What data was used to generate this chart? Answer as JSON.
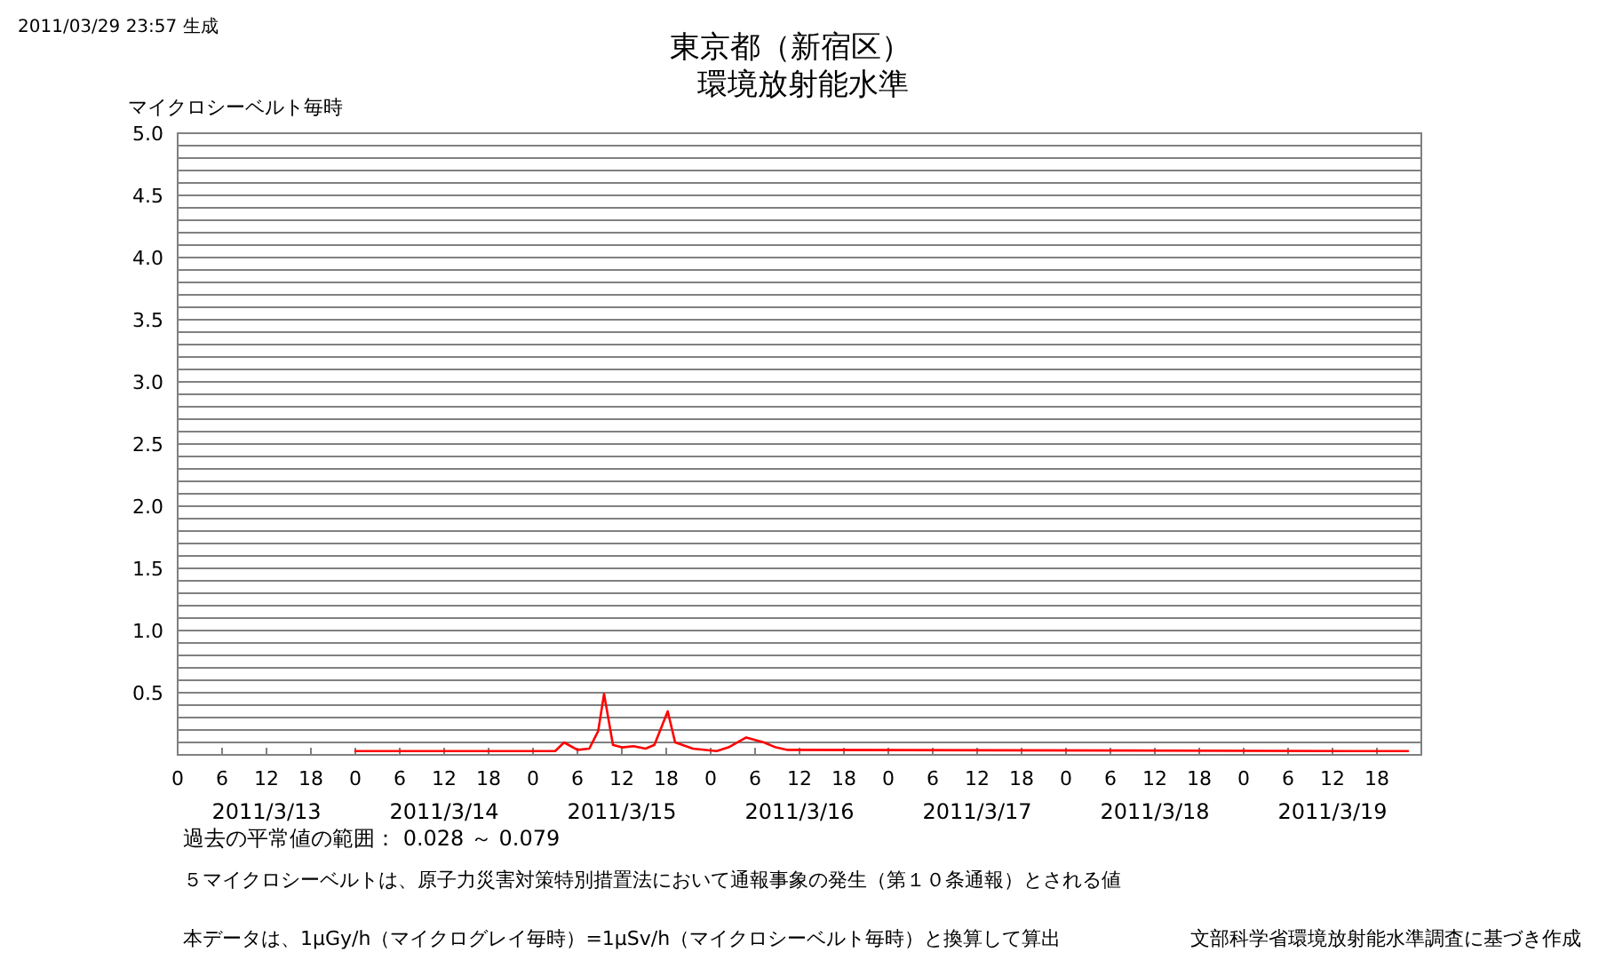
{
  "chart_data": {
    "type": "line",
    "title": "東京都（新宿区）",
    "subtitle": "環境放射能水準",
    "ylabel": "マイクロシーベルト毎時",
    "x": [
      "2011-03-14T00:00",
      "2011-03-15T03:00",
      "2011-03-15T04:12",
      "2011-03-15T06:00",
      "2011-03-15T07:36",
      "2011-03-15T08:48",
      "2011-03-15T09:36",
      "2011-03-15T10:48",
      "2011-03-15T12:00",
      "2011-03-15T13:36",
      "2011-03-15T15:12",
      "2011-03-15T16:24",
      "2011-03-15T18:12",
      "2011-03-15T19:12",
      "2011-03-15T21:36",
      "2011-03-16T00:48",
      "2011-03-16T02:24",
      "2011-03-16T04:48",
      "2011-03-16T07:12",
      "2011-03-16T08:48",
      "2011-03-16T10:24",
      "2011-03-19T22:12"
    ],
    "series": [
      {
        "color": "#ff0000",
        "values": [
          0.03,
          0.03,
          0.1,
          0.04,
          0.05,
          0.19,
          0.49,
          0.08,
          0.06,
          0.07,
          0.05,
          0.08,
          0.35,
          0.1,
          0.05,
          0.03,
          0.06,
          0.14,
          0.1,
          0.06,
          0.04,
          0.03
        ]
      }
    ],
    "xlim": [
      "2011-03-13T00:00",
      "2011-03-20T00:00"
    ],
    "ylim": [
      0,
      5
    ],
    "xticks": [
      {
        "value": "2011-03-13T00:00",
        "label": "0"
      },
      {
        "value": "2011-03-13T06:00",
        "label": "6"
      },
      {
        "value": "2011-03-13T12:00",
        "label": "12"
      },
      {
        "value": "2011-03-13T18:00",
        "label": "18"
      },
      {
        "value": "2011-03-14T00:00",
        "label": "0"
      },
      {
        "value": "2011-03-14T06:00",
        "label": "6"
      },
      {
        "value": "2011-03-14T12:00",
        "label": "12"
      },
      {
        "value": "2011-03-14T18:00",
        "label": "18"
      },
      {
        "value": "2011-03-15T00:00",
        "label": "0"
      },
      {
        "value": "2011-03-15T06:00",
        "label": "6"
      },
      {
        "value": "2011-03-15T12:00",
        "label": "12"
      },
      {
        "value": "2011-03-15T18:00",
        "label": "18"
      },
      {
        "value": "2011-03-16T00:00",
        "label": "0"
      },
      {
        "value": "2011-03-16T06:00",
        "label": "6"
      },
      {
        "value": "2011-03-16T12:00",
        "label": "12"
      },
      {
        "value": "2011-03-16T18:00",
        "label": "18"
      },
      {
        "value": "2011-03-17T00:00",
        "label": "0"
      },
      {
        "value": "2011-03-17T06:00",
        "label": "6"
      },
      {
        "value": "2011-03-17T12:00",
        "label": "12"
      },
      {
        "value": "2011-03-17T18:00",
        "label": "18"
      },
      {
        "value": "2011-03-18T00:00",
        "label": "0"
      },
      {
        "value": "2011-03-18T06:00",
        "label": "6"
      },
      {
        "value": "2011-03-18T12:00",
        "label": "12"
      },
      {
        "value": "2011-03-18T18:00",
        "label": "18"
      },
      {
        "value": "2011-03-19T00:00",
        "label": "0"
      },
      {
        "value": "2011-03-19T06:00",
        "label": "6"
      },
      {
        "value": "2011-03-19T12:00",
        "label": "12"
      },
      {
        "value": "2011-03-19T18:00",
        "label": "18"
      }
    ],
    "yticks": [
      {
        "value": 0.1,
        "label": null
      },
      {
        "value": 0.2,
        "label": null
      },
      {
        "value": 0.3,
        "label": null
      },
      {
        "value": 0.4,
        "label": null
      },
      0.5,
      {
        "value": 0.6,
        "label": null
      },
      {
        "value": 0.7,
        "label": null
      },
      {
        "value": 0.8,
        "label": null
      },
      {
        "value": 0.9,
        "label": null
      },
      {
        "value": 1,
        "label": "1.0"
      },
      {
        "value": 1.1,
        "label": null
      },
      {
        "value": 1.2,
        "label": null
      },
      {
        "value": 1.3,
        "label": null
      },
      {
        "value": 1.4,
        "label": null
      },
      1.5,
      {
        "value": 1.6,
        "label": null
      },
      {
        "value": 1.7,
        "label": null
      },
      {
        "value": 1.8,
        "label": null
      },
      {
        "value": 1.9,
        "label": null
      },
      {
        "value": 2,
        "label": "2.0"
      },
      {
        "value": 2.1,
        "label": null
      },
      {
        "value": 2.2,
        "label": null
      },
      {
        "value": 2.3,
        "label": null
      },
      {
        "value": 2.4,
        "label": null
      },
      2.5,
      {
        "value": 2.6,
        "label": null
      },
      {
        "value": 2.7,
        "label": null
      },
      {
        "value": 2.8,
        "label": null
      },
      {
        "value": 2.9,
        "label": null
      },
      {
        "value": 3,
        "label": "3.0"
      },
      {
        "value": 3.1,
        "label": null
      },
      {
        "value": 3.2,
        "label": null
      },
      {
        "value": 3.3,
        "label": null
      },
      {
        "value": 3.4,
        "label": null
      },
      3.5,
      {
        "value": 3.6,
        "label": null
      },
      {
        "value": 3.7,
        "label": null
      },
      {
        "value": 3.8,
        "label": null
      },
      {
        "value": 3.9,
        "label": null
      },
      {
        "value": 4,
        "label": "4.0"
      },
      {
        "value": 4.1,
        "label": null
      },
      {
        "value": 4.2,
        "label": null
      },
      {
        "value": 4.3,
        "label": null
      },
      {
        "value": 4.4,
        "label": null
      },
      4.5,
      {
        "value": 4.6,
        "label": null
      },
      {
        "value": 4.7,
        "label": null
      },
      {
        "value": 4.8,
        "label": null
      },
      {
        "value": 4.9,
        "label": null
      },
      {
        "value": 5,
        "label": "5.0"
      }
    ],
    "grid": "y",
    "marker": "none",
    "line_style": "solid",
    "annotations": [
      "2011/03/29 23:57 生成",
      "過去の平常値の範囲： 0.028 ～ 0.079",
      "５マイクロシーベルトは、原子力災害対策特別措置法において通報事象の発生（第１０条通報）とされる値",
      "本データは、1μGy/h（マイクログレイ毎時）=1μSv/h（マイクロシーベルト毎時）と換算して算出",
      "文部科学省環境放射能水準調査に基づき作成",
      "2011/3/13",
      "2011/3/14",
      "2011/3/15",
      "2011/3/16",
      "2011/3/17",
      "2011/3/18",
      "2011/3/19"
    ]
  }
}
